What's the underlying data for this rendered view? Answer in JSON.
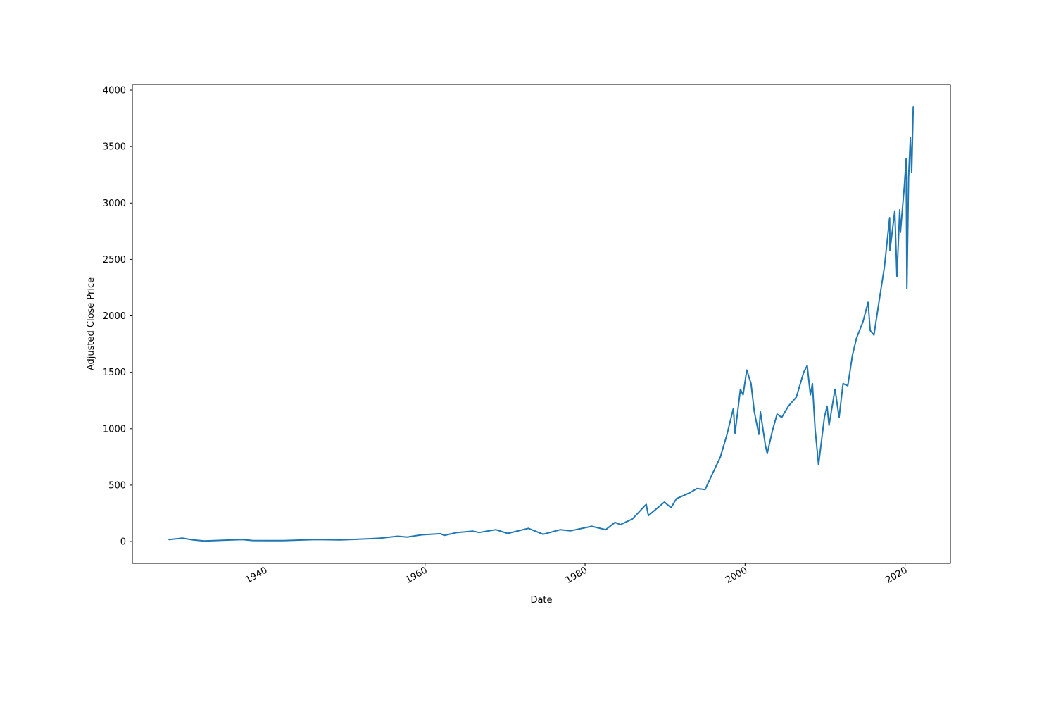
{
  "chart_data": {
    "type": "line",
    "title": "",
    "xlabel": "Date",
    "ylabel": "Adjusted Close Price",
    "xlim": [
      "1923-06-01",
      "2025-09-01"
    ],
    "ylim": [
      -193,
      4050
    ],
    "x_ticks": [
      "1940",
      "1960",
      "1980",
      "2000",
      "2020"
    ],
    "y_ticks": [
      "0",
      "500",
      "1000",
      "1500",
      "2000",
      "2500",
      "3000",
      "3500",
      "4000"
    ],
    "grid": false,
    "legend": "none",
    "series_color": "#1f77b4",
    "series": [
      {
        "x": [
          "1927-12-30",
          "1929-09-01",
          "1931-01-01",
          "1932-06-01",
          "1935-01-01",
          "1937-03-01",
          "1938-06-01",
          "1942-04-01",
          "1946-05-01",
          "1949-06-01",
          "1953-01-01",
          "1954-06-01",
          "1956-08-01",
          "1957-10-01",
          "1959-08-01",
          "1961-12-01",
          "1962-06-01",
          "1964-01-01",
          "1966-01-01",
          "1966-10-01",
          "1968-11-01",
          "1970-05-01",
          "1972-12-01",
          "1974-10-01",
          "1976-12-01",
          "1978-03-01",
          "1980-11-01",
          "1982-08-01",
          "1983-10-01",
          "1984-06-01",
          "1985-12-01",
          "1987-08-25",
          "1987-12-01",
          "1989-12-01",
          "1990-10-01",
          "1991-06-01",
          "1993-01-01",
          "1994-01-01",
          "1995-01-01",
          "1995-12-01",
          "1996-12-01",
          "1997-10-01",
          "1998-07-15",
          "1998-10-01",
          "1999-06-01",
          "1999-10-01",
          "2000-03-20",
          "2000-10-01",
          "2001-03-01",
          "2001-09-20",
          "2001-12-01",
          "2002-07-20",
          "2002-10-09",
          "2003-06-01",
          "2004-01-01",
          "2004-08-01",
          "2005-06-01",
          "2006-06-01",
          "2007-05-01",
          "2007-10-09",
          "2008-03-01",
          "2008-06-01",
          "2008-10-01",
          "2009-03-09",
          "2009-12-01",
          "2010-04-01",
          "2010-07-01",
          "2011-04-01",
          "2011-10-03",
          "2012-04-01",
          "2012-11-01",
          "2013-06-01",
          "2013-12-01",
          "2014-10-01",
          "2015-05-20",
          "2015-08-25",
          "2016-02-11",
          "2016-10-01",
          "2017-06-01",
          "2018-01-26",
          "2018-02-08",
          "2018-09-20",
          "2018-12-24",
          "2019-05-01",
          "2019-06-03",
          "2019-12-01",
          "2020-02-19",
          "2020-03-23",
          "2020-06-08",
          "2020-09-02",
          "2020-10-30",
          "2021-01-08"
        ],
        "y": [
          18,
          30,
          15,
          5,
          12,
          17,
          9,
          8,
          18,
          15,
          25,
          30,
          47,
          40,
          60,
          70,
          55,
          80,
          92,
          80,
          105,
          72,
          117,
          65,
          105,
          95,
          135,
          105,
          170,
          150,
          200,
          330,
          230,
          350,
          300,
          380,
          430,
          470,
          460,
          600,
          750,
          950,
          1180,
          960,
          1350,
          1300,
          1520,
          1400,
          1150,
          950,
          1150,
          850,
          780,
          980,
          1130,
          1100,
          1200,
          1280,
          1500,
          1560,
          1300,
          1400,
          1000,
          680,
          1100,
          1200,
          1030,
          1350,
          1100,
          1400,
          1380,
          1650,
          1800,
          1950,
          2120,
          1870,
          1830,
          2130,
          2430,
          2870,
          2580,
          2930,
          2350,
          2940,
          2740,
          3150,
          3390,
          2240,
          3230,
          3580,
          3270,
          3850
        ]
      }
    ]
  }
}
